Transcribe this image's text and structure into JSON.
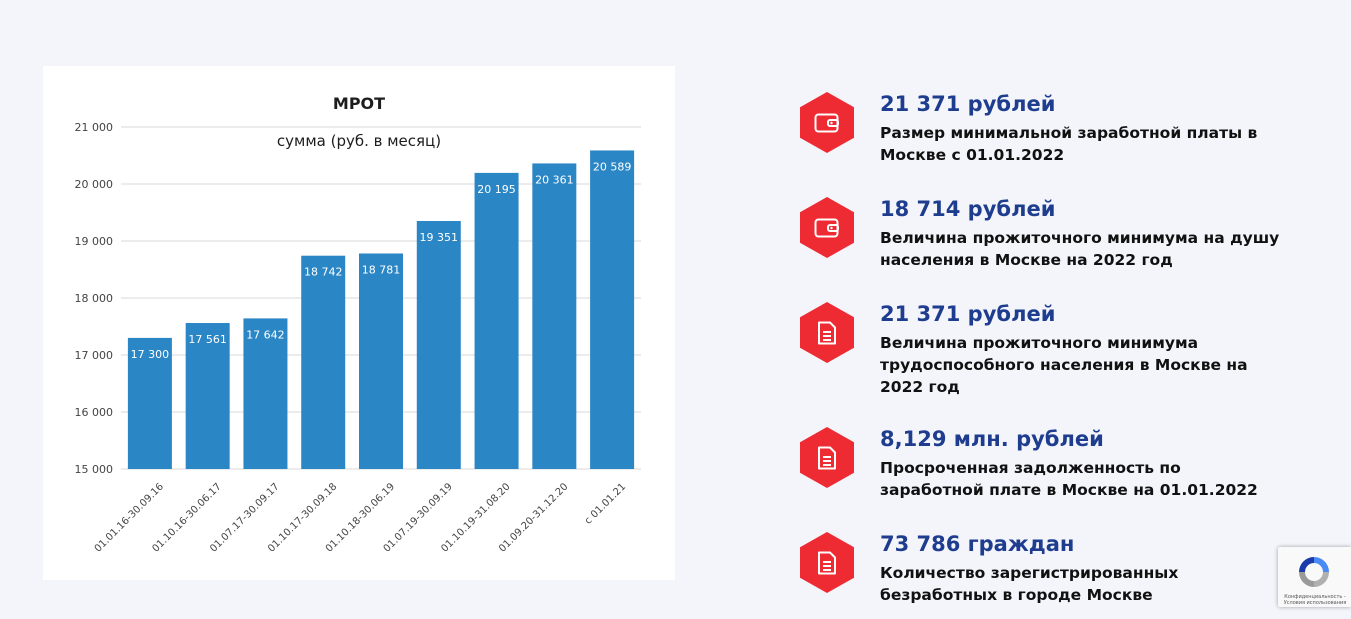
{
  "colors": {
    "bar": "#2b86c5",
    "accent": "#ee2a32",
    "value": "#1e3d8f",
    "background": "#f4f5fb"
  },
  "chart_data": {
    "type": "bar",
    "title": "МРОТ",
    "subtitle": "сумма (руб. в месяц)",
    "categories": [
      "01.01.16-30.09.16",
      "01.10.16-30.06.17",
      "01.07.17-30.09.17",
      "01.10.17-30.09.18",
      "01.10.18-30.06.19",
      "01.07.19-30.09.19",
      "01.10.19-31.08.20",
      "01.09.20-31.12.20",
      "с 01.01.21"
    ],
    "values": [
      17300,
      17561,
      17642,
      18742,
      18781,
      19351,
      20195,
      20361,
      20589
    ],
    "value_labels": [
      "17 300",
      "17 561",
      "17 642",
      "18 742",
      "18 781",
      "19 351",
      "20 195",
      "20 361",
      "20 589"
    ],
    "ylim": [
      15000,
      21000
    ],
    "yticks": [
      15000,
      16000,
      17000,
      18000,
      19000,
      20000,
      21000
    ],
    "ytick_labels": [
      "15 000",
      "16 000",
      "17 000",
      "18 000",
      "19 000",
      "20 000",
      "21 000"
    ],
    "grid": true,
    "xlabel": "",
    "ylabel": ""
  },
  "stats": [
    {
      "icon": "wallet-icon",
      "value": "21 371 рублей",
      "description": "Размер минимальной заработной платы в Москве с 01.01.2022"
    },
    {
      "icon": "wallet-icon",
      "value": "18 714 рублей",
      "description": "Величина прожиточного минимума на душу населения в Москве на 2022 год"
    },
    {
      "icon": "document-icon",
      "value": "21 371 рублей",
      "description": "Величина прожиточного минимума трудоспособного населения в Москве на 2022 год"
    },
    {
      "icon": "document-icon",
      "value": "8,129 млн. рублей",
      "description": "Просроченная задолженность по заработной плате в Москве на 01.01.2022"
    },
    {
      "icon": "document-icon",
      "value": "73 786 граждан",
      "description": "Количество зарегистрированных безработных в городе Москве"
    }
  ],
  "recaptcha": {
    "text": "Конфиденциальность - Условия использования"
  }
}
